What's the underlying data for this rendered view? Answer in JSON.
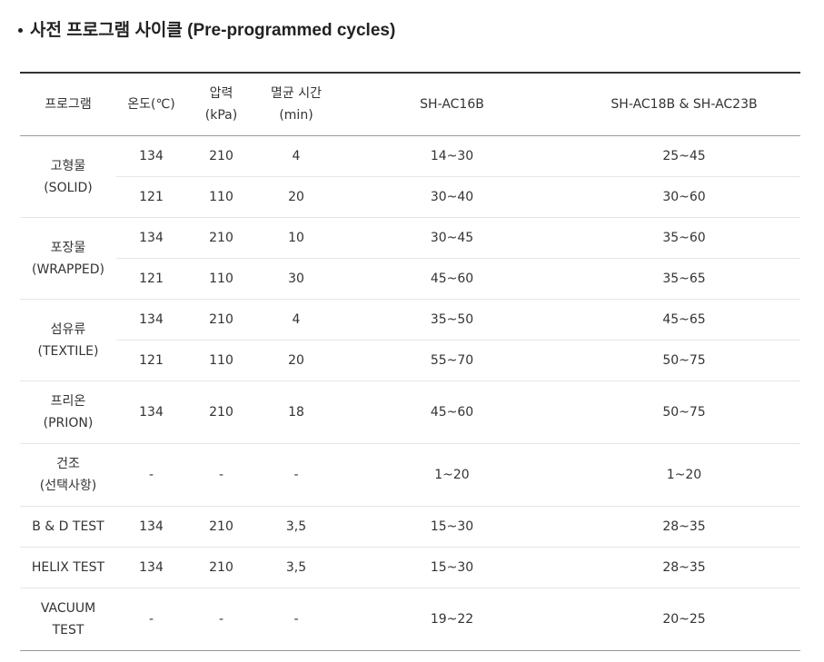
{
  "title": "사전 프로그램 사이클 (Pre-programmed cycles)",
  "headers": {
    "program": "프로그램",
    "temp": "온도(℃)",
    "pressure_1": "압력",
    "pressure_2": "(kPa)",
    "time_1": "멸균 시간",
    "time_2": "(min)",
    "model_a": "SH-AC16B",
    "model_b": "SH-AC18B & SH-AC23B"
  },
  "rows": [
    {
      "name_1": "고형물",
      "name_2": "(SOLID)",
      "sub": [
        [
          "134",
          "210",
          "4",
          "14~30",
          "25~45"
        ],
        [
          "121",
          "110",
          "20",
          "30~40",
          "30~60"
        ]
      ]
    },
    {
      "name_1": "포장물",
      "name_2": "(WRAPPED)",
      "sub": [
        [
          "134",
          "210",
          "10",
          "30~45",
          "35~60"
        ],
        [
          "121",
          "110",
          "30",
          "45~60",
          "35~65"
        ]
      ]
    },
    {
      "name_1": "섬유류",
      "name_2": "(TEXTILE)",
      "sub": [
        [
          "134",
          "210",
          "4",
          "35~50",
          "45~65"
        ],
        [
          "121",
          "110",
          "20",
          "55~70",
          "50~75"
        ]
      ]
    },
    {
      "name_1": "프리온",
      "name_2": "(PRION)",
      "sub": [
        [
          "134",
          "210",
          "18",
          "45~60",
          "50~75"
        ]
      ]
    },
    {
      "name_1": "건조",
      "name_2": "(선택사항)",
      "sub": [
        [
          "-",
          "-",
          "-",
          "1~20",
          "1~20"
        ]
      ]
    },
    {
      "name_1": "B & D TEST",
      "name_2": "",
      "sub": [
        [
          "134",
          "210",
          "3,5",
          "15~30",
          "28~35"
        ]
      ]
    },
    {
      "name_1": "HELIX TEST",
      "name_2": "",
      "sub": [
        [
          "134",
          "210",
          "3,5",
          "15~30",
          "28~35"
        ]
      ]
    },
    {
      "name_1": "VACUUM",
      "name_2": "TEST",
      "sub": [
        [
          "-",
          "-",
          "-",
          "19~22",
          "20~25"
        ]
      ]
    }
  ]
}
